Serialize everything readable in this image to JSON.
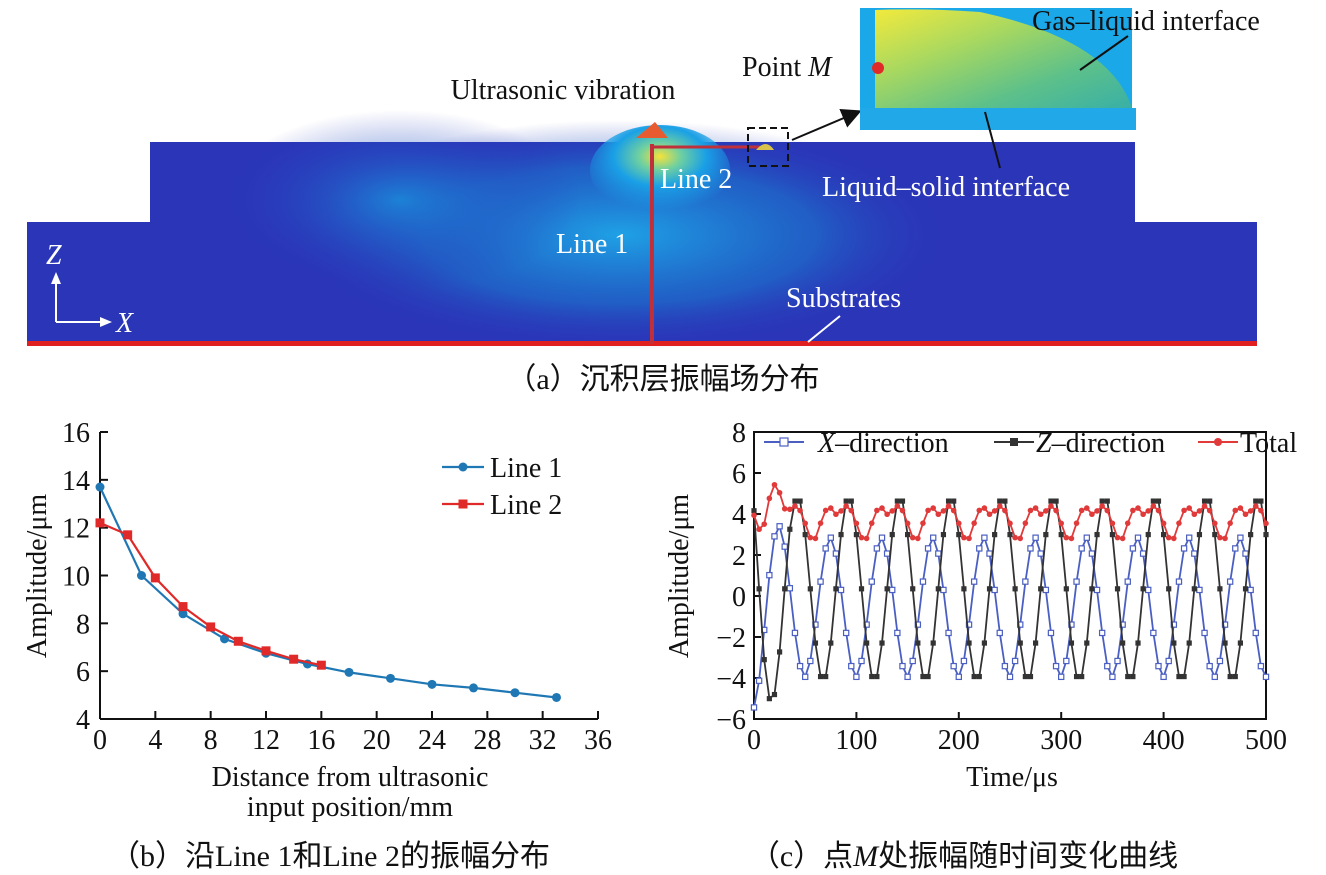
{
  "panel_a": {
    "caption": "（a）沉积层振幅场分布",
    "labels": {
      "ultrasonic_vibration": "Ultrasonic vibration",
      "point_m_prefix": "Point ",
      "point_m_var": "M",
      "gas_liquid": "Gas–liquid interface",
      "liquid_solid": "Liquid–solid interface",
      "line1": "Line 1",
      "line2": "Line 2",
      "substrates": "Substrates",
      "axis_z": "Z",
      "axis_x": "X"
    },
    "colors": {
      "field_low": "#2a35b8",
      "field_mid": "#1aa0e6",
      "field_high": "#f5e23a",
      "line_red": "#e02020"
    }
  },
  "chart_data": [
    {
      "type": "line",
      "caption": "（b）沿Line 1和Line 2的振幅分布",
      "xlabel_line1": "Distance from ultrasonic",
      "xlabel_line2": "input position/mm",
      "ylabel": "Amplitude/μm",
      "xlim": [
        0,
        36
      ],
      "ylim": [
        4,
        16
      ],
      "xticks": [
        0,
        4,
        8,
        12,
        16,
        20,
        24,
        28,
        32,
        36
      ],
      "yticks": [
        4,
        6,
        8,
        10,
        12,
        14,
        16
      ],
      "legend_position": "top-right",
      "series": [
        {
          "name": "Line 1",
          "color": "#1f77b4",
          "marker": "circle",
          "x": [
            0,
            3,
            6,
            9,
            12,
            15,
            18,
            21,
            24,
            27,
            30,
            33
          ],
          "y": [
            13.7,
            10.0,
            8.4,
            7.35,
            6.75,
            6.3,
            5.95,
            5.7,
            5.45,
            5.3,
            5.1,
            4.9
          ]
        },
        {
          "name": "Line 2",
          "color": "#e02a2a",
          "marker": "square",
          "x": [
            0,
            2,
            4,
            6,
            8,
            10,
            12,
            14,
            16
          ],
          "y": [
            12.2,
            11.7,
            9.9,
            8.7,
            7.85,
            7.25,
            6.85,
            6.5,
            6.25
          ]
        }
      ]
    },
    {
      "type": "line",
      "caption_prefix": "（c）点",
      "caption_var": "M",
      "caption_suffix": "处振幅随时间变化曲线",
      "xlabel": "Time/μs",
      "ylabel": "Amplitude/μm",
      "xlim": [
        0,
        500
      ],
      "ylim": [
        -6,
        8
      ],
      "xticks": [
        0,
        100,
        200,
        300,
        400,
        500
      ],
      "yticks": [
        -6,
        -4,
        -2,
        0,
        2,
        4,
        6,
        8
      ],
      "legend_position": "top",
      "period_us": 50,
      "series": [
        {
          "name": "X–direction",
          "name_var": "X",
          "name_rest": "–direction",
          "color": "#4a5fc1",
          "marker": "open-square",
          "amplitude": 3.4,
          "offset": -0.55,
          "phase_us": -12
        },
        {
          "name": "Z–direction",
          "name_var": "Z",
          "name_rest": "–direction",
          "color": "#333333",
          "marker": "square",
          "amplitude": 4.5,
          "offset": 0.35,
          "phase_us": 20
        },
        {
          "name": "Total",
          "color": "#e03a3a",
          "marker": "circle",
          "peak_first": 6.2,
          "peak": 4.8,
          "trough": 2.7
        }
      ]
    }
  ]
}
